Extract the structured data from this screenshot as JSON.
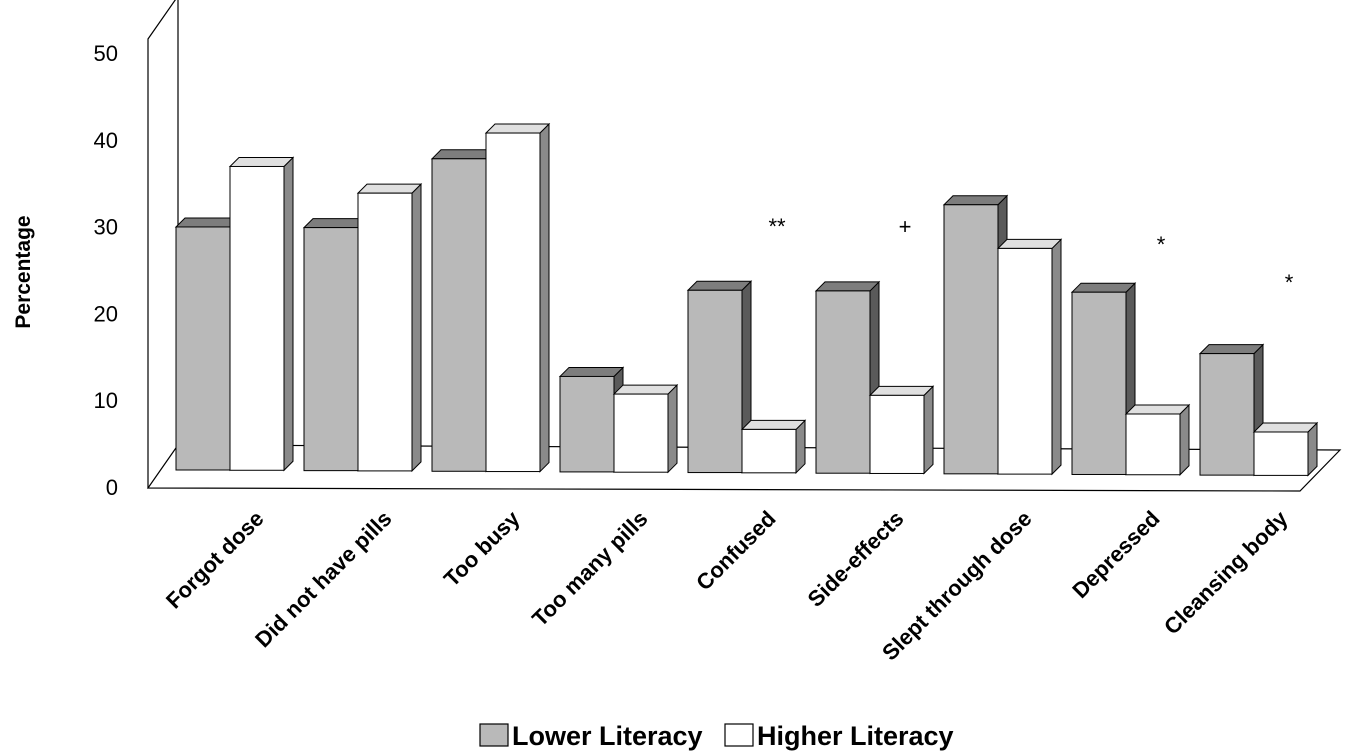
{
  "chart_data": {
    "type": "bar",
    "ylabel": "Percentage",
    "ylim": [
      0,
      50
    ],
    "yticks": [
      "0",
      "10",
      "20",
      "30",
      "40",
      "50"
    ],
    "categories": [
      "Forgot dose",
      "Did not have pills",
      "Too busy",
      "Too many pills",
      "Confused",
      "Side-effects",
      "Slept through dose",
      "Depressed",
      "Cleansing body"
    ],
    "series": [
      {
        "name": "Lower Literacy",
        "color": "#b9b9b9",
        "values": [
          28,
          28,
          36,
          11,
          21,
          21,
          31,
          21,
          14
        ]
      },
      {
        "name": "Higher Literacy",
        "color": "#ffffff",
        "values": [
          35,
          32,
          39,
          9,
          5,
          9,
          26,
          7,
          5
        ]
      }
    ],
    "annotations": [
      "",
      "",
      "",
      "",
      "**",
      "+",
      "",
      "*",
      "*"
    ],
    "style": "3d",
    "grid": false,
    "legend": "bottom-center"
  }
}
